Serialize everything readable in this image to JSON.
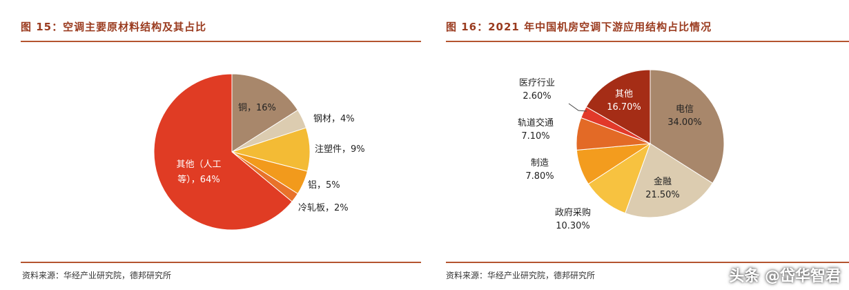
{
  "watermark": "头条 @岱华智君",
  "chart_data": [
    {
      "type": "pie",
      "title": "图 15：空调主要原材料结构及其占比",
      "source": "资料来源：华经产业研究院，德邦研究所",
      "slices": [
        {
          "label": "铜，16%",
          "value": 16,
          "color": "#a8876b"
        },
        {
          "label": "钢材，4%",
          "value": 4,
          "color": "#dcccb0"
        },
        {
          "label": "注塑件，9%",
          "value": 9,
          "color": "#f3bb35"
        },
        {
          "label": "铝，5%",
          "value": 5,
          "color": "#f29a1c"
        },
        {
          "label": "冷轧板，2%",
          "value": 2,
          "color": "#e8722a"
        },
        {
          "label": "其他（人工等），64%",
          "value": 64,
          "color": "#e03c24"
        }
      ]
    },
    {
      "type": "pie",
      "title": "图 16：2021 年中国机房空调下游应用结构占比情况",
      "source": "资料来源：华经产业研究院，德邦研究所",
      "slices": [
        {
          "name": "电信",
          "pct": "34.00%",
          "value": 34.0,
          "color": "#a8876b"
        },
        {
          "name": "金融",
          "pct": "21.50%",
          "value": 21.5,
          "color": "#dcccb0"
        },
        {
          "name": "政府采购",
          "pct": "10.30%",
          "value": 10.3,
          "color": "#f7c240"
        },
        {
          "name": "制造",
          "pct": "7.80%",
          "value": 7.8,
          "color": "#f39c1e"
        },
        {
          "name": "轨道交通",
          "pct": "7.10%",
          "value": 7.1,
          "color": "#e36a26"
        },
        {
          "name": "医疗行业",
          "pct": "2.60%",
          "value": 2.6,
          "color": "#e2392a"
        },
        {
          "name": "其他",
          "pct": "16.70%",
          "value": 16.7,
          "color": "#a52d16"
        }
      ]
    }
  ]
}
